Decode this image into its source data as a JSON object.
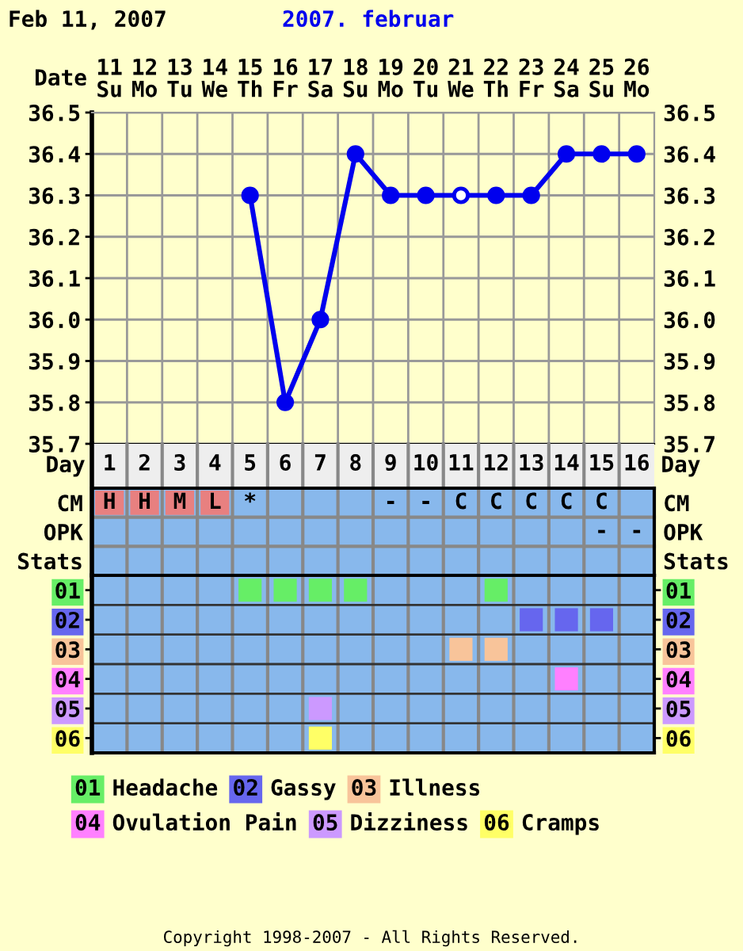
{
  "chart_data": [
    {
      "type": "line",
      "title": "Feb 11, 2007",
      "subtitle": "2007. februar",
      "xlabel": "Date",
      "categories": [
        "11\nSu",
        "12\nMo",
        "13\nTu",
        "14\nWe",
        "15\nTh",
        "16\nFr",
        "17\nSa",
        "18\nSu",
        "19\nMo",
        "20\nTu",
        "21\nWe",
        "22\nTh",
        "23\nFr",
        "24\nSa",
        "25\nSu",
        "26\nMo"
      ],
      "ylim": [
        35.7,
        36.5
      ],
      "yticks": [
        35.7,
        35.8,
        35.9,
        {
          "value": 36,
          "label": "36.0"
        },
        36.1,
        36.2,
        36.3,
        36.4,
        36.5
      ],
      "y2lim": [
        35.7,
        36.5
      ],
      "y2ticks": [
        35.7,
        35.8,
        35.9,
        {
          "value": 36,
          "label": "36.0"
        },
        36.1,
        36.2,
        36.3,
        36.4,
        36.5
      ],
      "grid": true,
      "marker": "circle",
      "series": [
        {
          "color": "#0000ee",
          "values": [
            null,
            null,
            null,
            null,
            36.3,
            35.8,
            36.0,
            36.4,
            36.3,
            36.3,
            36.3,
            36.3,
            36.3,
            36.4,
            36.4,
            36.4
          ]
        },
        {
          "type": "scatter",
          "color": "#ffffff",
          "values": [
            null,
            null,
            null,
            null,
            null,
            null,
            null,
            null,
            null,
            null,
            36.3,
            null,
            null,
            null,
            null,
            null
          ]
        }
      ]
    },
    {
      "type": "heatmap",
      "xlabel": "Day",
      "grid": true,
      "categories": [
        "1",
        "2",
        "3",
        "4",
        "5",
        "6",
        "7",
        "8",
        "9",
        "10",
        "11",
        "12",
        "13",
        "14",
        "15",
        "16"
      ],
      "y_categories": [
        "CM",
        "OPK",
        "Stats"
      ],
      "y2_categories": [
        "CM",
        "OPK",
        "Stats"
      ],
      "cells": [
        [
          null,
          null,
          null,
          null,
          null,
          null,
          null,
          null,
          null,
          null,
          null,
          null,
          null,
          null,
          null,
          null
        ],
        [
          null,
          null,
          null,
          null,
          null,
          null,
          null,
          null,
          null,
          null,
          null,
          null,
          null,
          null,
          null,
          null
        ],
        [
          null,
          null,
          null,
          null,
          null,
          null,
          null,
          null,
          null,
          null,
          null,
          null,
          null,
          null,
          null,
          null
        ]
      ],
      "cell_labels": [
        [
          "H",
          "H",
          "M",
          "L",
          "*",
          null,
          null,
          null,
          "-",
          "-",
          "C",
          "C",
          "C",
          "C",
          "C",
          null
        ],
        [
          null,
          null,
          null,
          null,
          null,
          null,
          null,
          null,
          null,
          null,
          null,
          null,
          null,
          null,
          "-",
          "-"
        ],
        [
          null,
          null,
          null,
          null,
          null,
          null,
          null,
          null,
          null,
          null,
          null,
          null,
          null,
          null,
          null,
          null
        ]
      ],
      "colors": [
        [
          "#e88080",
          "#e88080",
          "#e88080",
          "#e88080",
          null,
          null,
          null,
          null,
          null,
          null,
          null,
          null,
          null,
          null,
          null,
          null
        ],
        [
          null,
          null,
          null,
          null,
          null,
          null,
          null,
          null,
          null,
          null,
          null,
          null,
          null,
          null,
          null,
          null
        ],
        [
          null,
          null,
          null,
          null,
          null,
          null,
          null,
          null,
          null,
          null,
          null,
          null,
          null,
          null,
          null,
          null
        ]
      ]
    },
    {
      "type": "scatter",
      "tick_labels": "y",
      "categories": [
        "1",
        "2",
        "3",
        "4",
        "5",
        "6",
        "7",
        "8",
        "9",
        "10",
        "11",
        "12",
        "13",
        "14",
        "15",
        "16"
      ],
      "ylim": [
        6.5,
        0.5
      ],
      "yticks": [
        {
          "value": 1,
          "label": "01"
        },
        {
          "value": 2,
          "label": "02"
        },
        {
          "value": 3,
          "label": "03"
        },
        {
          "value": 4,
          "label": "04"
        },
        {
          "value": 5,
          "label": "05"
        },
        {
          "value": 6,
          "label": "06"
        }
      ],
      "y2lim": [
        6.5,
        0.5
      ],
      "y2ticks": [
        {
          "value": 1,
          "label": "01"
        },
        {
          "value": 2,
          "label": "02"
        },
        {
          "value": 3,
          "label": "03"
        },
        {
          "value": 4,
          "label": "04"
        },
        {
          "value": 5,
          "label": "05"
        },
        {
          "value": 6,
          "label": "06"
        }
      ],
      "grid": "x",
      "marker": "square",
      "legend": "bottom",
      "ref_lines": [
        {
          "axis": "y",
          "value": 1.5,
          "color": "#333333"
        },
        {
          "axis": "y",
          "value": 2.5,
          "color": "#333333"
        },
        {
          "axis": "y",
          "value": 3.5,
          "color": "#333333"
        },
        {
          "axis": "y",
          "value": 4.5,
          "color": "#333333"
        },
        {
          "axis": "y",
          "value": 5.5,
          "color": "#333333"
        }
      ],
      "series": [
        {
          "name": "Headache",
          "color": "#66ee66",
          "values": [
            null,
            null,
            null,
            null,
            1,
            1,
            1,
            1,
            null,
            null,
            null,
            1,
            null,
            null,
            null,
            null
          ]
        },
        {
          "name": "Gassy",
          "color": "#6666ee",
          "values": [
            null,
            null,
            null,
            null,
            null,
            null,
            null,
            null,
            null,
            null,
            null,
            null,
            2,
            2,
            2,
            null
          ]
        },
        {
          "name": "Illness",
          "color": "#f8c49a",
          "values": [
            null,
            null,
            null,
            null,
            null,
            null,
            null,
            null,
            null,
            null,
            3,
            3,
            null,
            null,
            null,
            null
          ]
        },
        {
          "name": "Ovulation Pain",
          "color": "#ff80ff",
          "values": [
            null,
            null,
            null,
            null,
            null,
            null,
            null,
            null,
            null,
            null,
            null,
            null,
            null,
            4,
            null,
            null
          ]
        },
        {
          "name": "Dizziness",
          "color": "#cc99ff",
          "values": [
            null,
            null,
            null,
            null,
            null,
            null,
            5,
            null,
            null,
            null,
            null,
            null,
            null,
            null,
            null,
            null
          ]
        },
        {
          "name": "Cramps",
          "color": "#ffff66",
          "values": [
            null,
            null,
            null,
            null,
            null,
            null,
            6,
            null,
            null,
            null,
            null,
            null,
            null,
            null,
            null,
            null
          ]
        }
      ],
      "annotations": [
        "Copyright 1998-2007 - All Rights Reserved."
      ]
    }
  ]
}
